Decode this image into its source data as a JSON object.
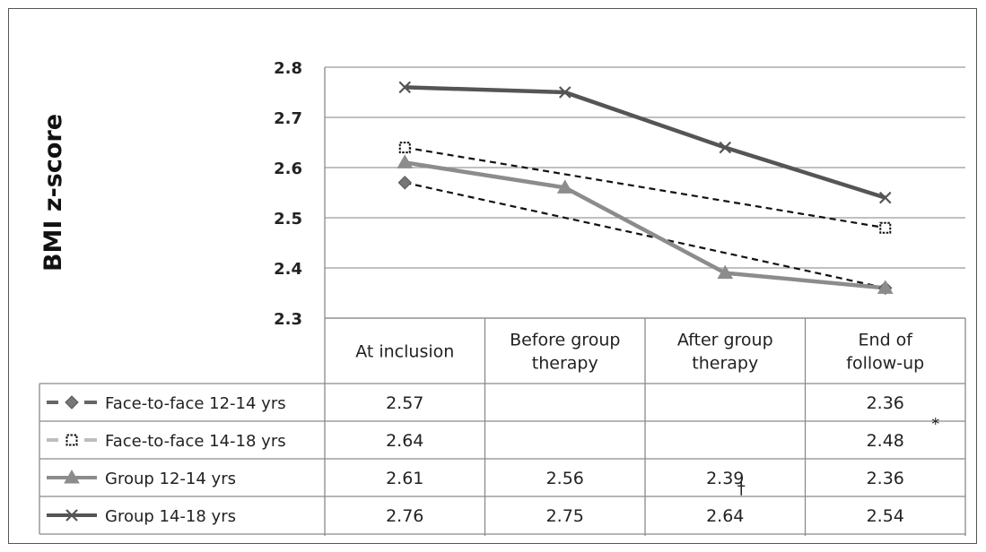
{
  "chart_data": {
    "type": "line",
    "ylabel": "BMI z-score",
    "ylim": [
      2.3,
      2.8
    ],
    "yticks": [
      "2.8",
      "2.7",
      "2.6",
      "2.5",
      "2.4",
      "2.3"
    ],
    "categories": [
      [
        "At inclusion"
      ],
      [
        "Before group",
        "therapy"
      ],
      [
        "After group",
        "therapy"
      ],
      [
        "End of",
        "follow-up"
      ]
    ],
    "grid": true,
    "legend": "table-below",
    "series": [
      {
        "name": "Face-to-face 12-14 yrs",
        "values": [
          2.57,
          null,
          null,
          2.36
        ],
        "labels": [
          "2.57",
          "",
          "",
          "2.36"
        ],
        "marker": "diamond",
        "style": "dashed",
        "color": "#111111"
      },
      {
        "name": "Face-to-face 14-18 yrs",
        "values": [
          2.64,
          null,
          null,
          2.48
        ],
        "labels": [
          "2.64",
          "",
          "",
          "2.48"
        ],
        "marker": "square",
        "style": "dashed",
        "color": "#111111"
      },
      {
        "name": "Group 12-14 yrs",
        "values": [
          2.61,
          2.56,
          2.39,
          2.36
        ],
        "labels": [
          "2.61",
          "2.56",
          "2.39",
          "2.36"
        ],
        "marker": "triangle",
        "style": "solid",
        "color": "#8c8c8c"
      },
      {
        "name": "Group 14-18 yrs",
        "values": [
          2.76,
          2.75,
          2.64,
          2.54
        ],
        "labels": [
          "2.76",
          "2.75",
          "2.64",
          "2.54"
        ],
        "marker": "x",
        "style": "solid",
        "color": "#555555"
      }
    ],
    "annotations": [
      {
        "text": "*",
        "series": 1,
        "category": 3
      },
      {
        "text": "†",
        "series": 2,
        "category": 2
      }
    ]
  }
}
